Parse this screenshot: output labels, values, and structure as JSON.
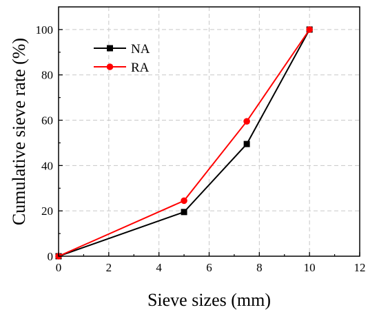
{
  "chart_data": {
    "type": "line",
    "title": "",
    "xlabel": "Sieve sizes (mm)",
    "ylabel": "Cumulative sieve rate (%)",
    "xlim": [
      0,
      12
    ],
    "ylim": [
      0,
      110
    ],
    "xticks": [
      "0",
      "2",
      "4",
      "6",
      "8",
      "10",
      "12"
    ],
    "yticks": [
      "0",
      "20",
      "40",
      "60",
      "80",
      "100"
    ],
    "grid": true,
    "legend_position": "top-left",
    "series": [
      {
        "name": "NA",
        "color": "#000000",
        "marker": "square",
        "x": [
          0,
          5,
          7.5,
          10
        ],
        "y": [
          0,
          19.5,
          49.5,
          100
        ]
      },
      {
        "name": "RA",
        "color": "#ff0000",
        "marker": "circle",
        "x": [
          0,
          5,
          7.5,
          10
        ],
        "y": [
          0,
          24.5,
          59.5,
          100
        ]
      }
    ]
  }
}
